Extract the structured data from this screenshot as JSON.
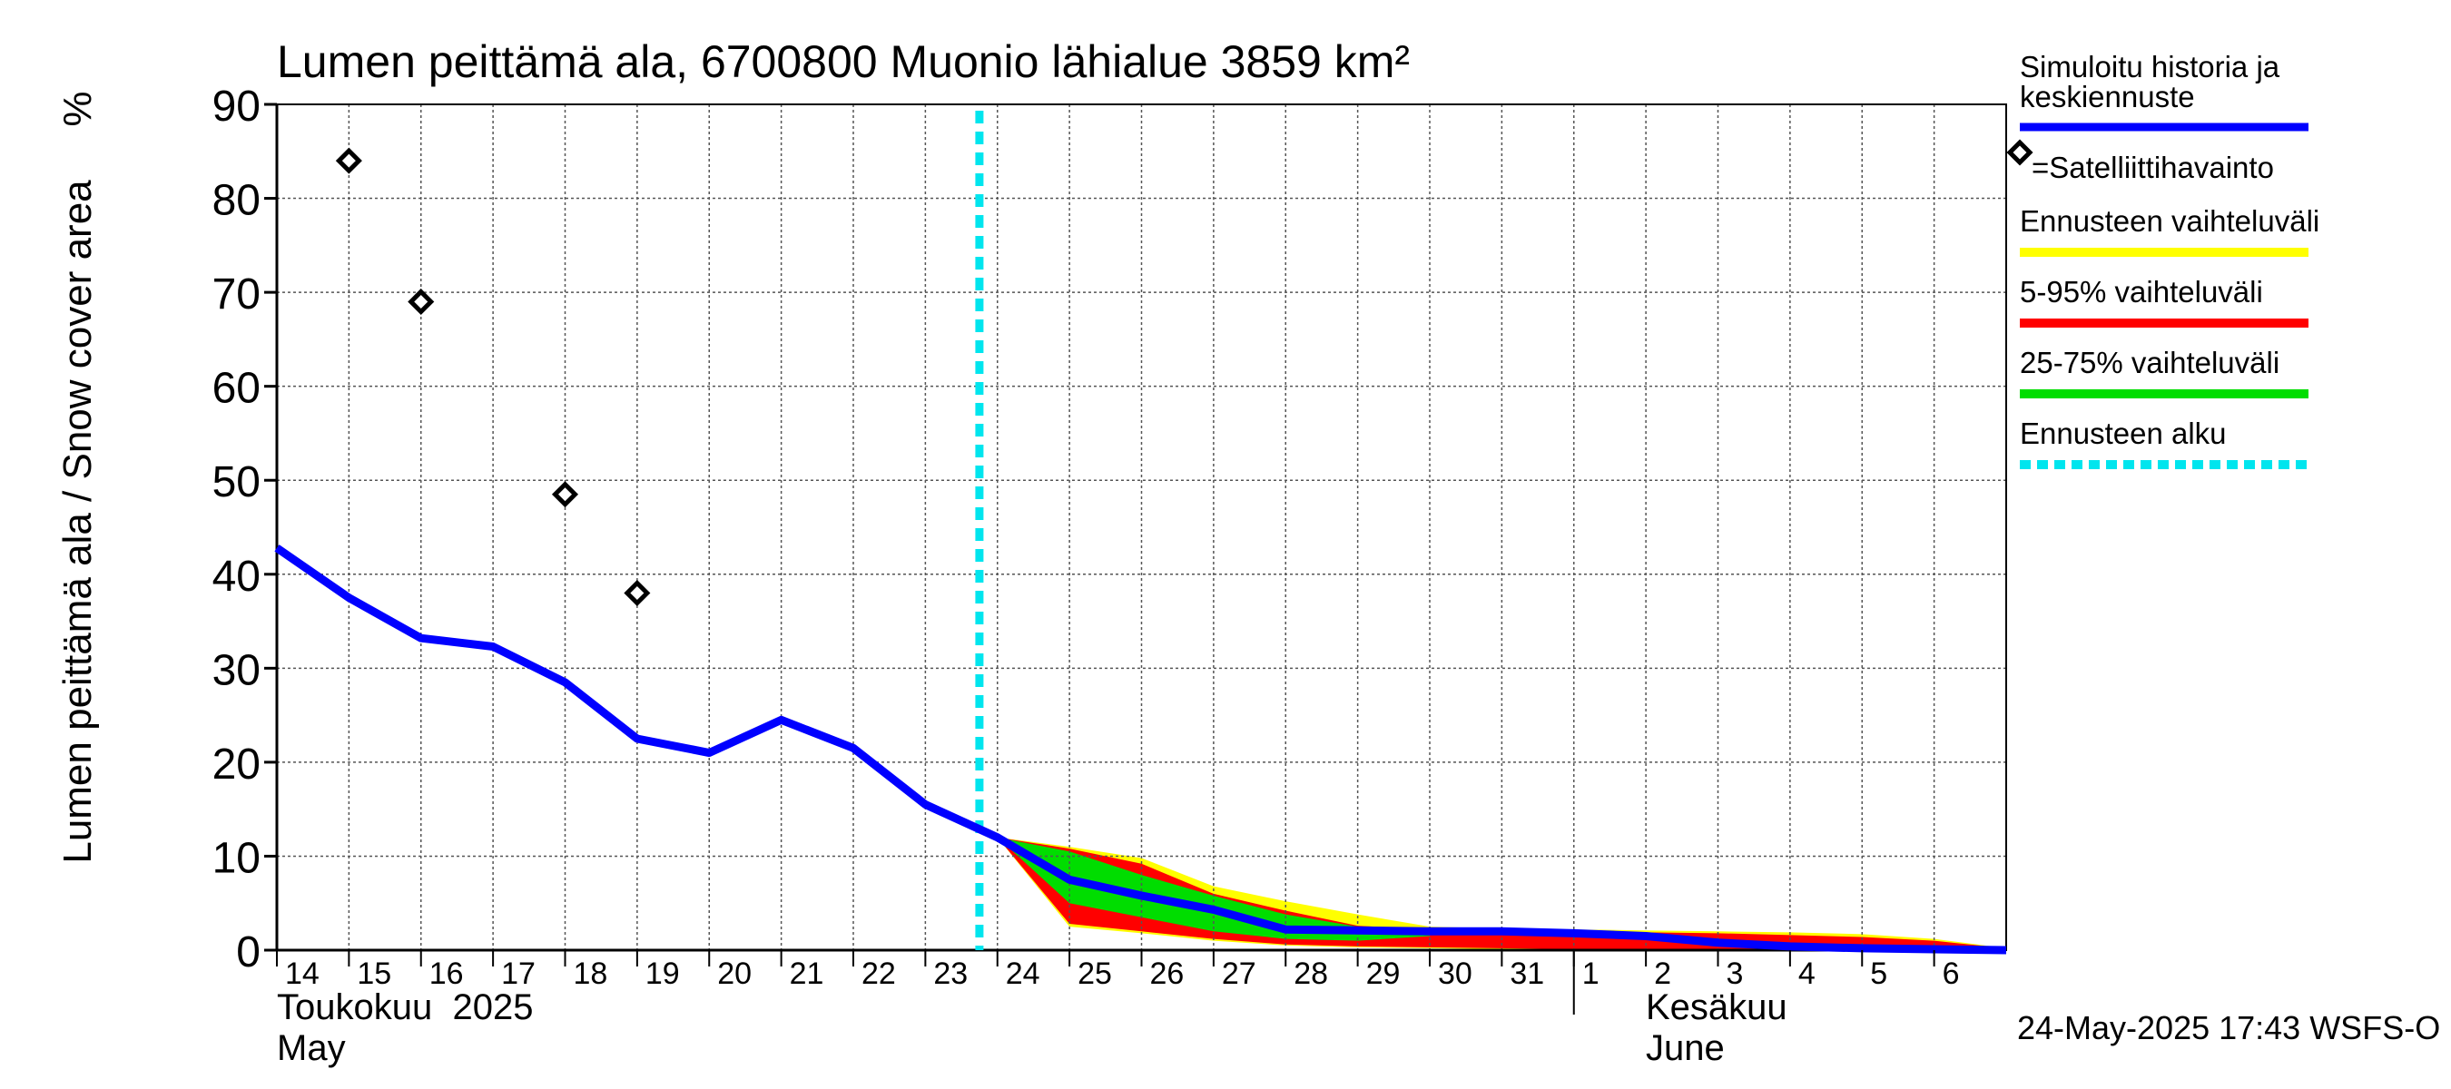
{
  "chart_data": {
    "type": "line",
    "title": "Lumen peittämä ala, 6700800 Muonio lähialue 3859 km²",
    "ylabel": "Lumen peittämä ala / Snow cover area",
    "yunit": "%",
    "ylim": [
      0,
      90
    ],
    "yticks": [
      0,
      10,
      20,
      30,
      40,
      50,
      60,
      70,
      80,
      90
    ],
    "xlim": [
      "2025-05-14",
      "2025-06-07"
    ],
    "x_tick_labels": [
      "14",
      "15",
      "16",
      "17",
      "18",
      "19",
      "20",
      "21",
      "22",
      "23",
      "24",
      "25",
      "26",
      "27",
      "28",
      "29",
      "30",
      "31",
      "1",
      "2",
      "3",
      "4",
      "5",
      "6"
    ],
    "month_labels": [
      {
        "fi": "Toukokuu  2025",
        "en": "May",
        "start": "2025-05-14"
      },
      {
        "fi": "Kesäkuu",
        "en": "June",
        "start": "2025-06-01"
      }
    ],
    "grid": true,
    "forecast_start": "2025-05-23T18:00",
    "series": [
      {
        "name": "Simuloitu historia ja keskiennuste",
        "color": "#0000ff",
        "points": [
          [
            "2025-05-14",
            42.8
          ],
          [
            "2025-05-15",
            37.5
          ],
          [
            "2025-05-16",
            33.2
          ],
          [
            "2025-05-17",
            32.3
          ],
          [
            "2025-05-18",
            28.5
          ],
          [
            "2025-05-19",
            22.5
          ],
          [
            "2025-05-20",
            21.0
          ],
          [
            "2025-05-21",
            24.5
          ],
          [
            "2025-05-22",
            21.5
          ],
          [
            "2025-05-23",
            15.5
          ],
          [
            "2025-05-24",
            12.0
          ],
          [
            "2025-05-25",
            7.5
          ],
          [
            "2025-05-26",
            5.8
          ],
          [
            "2025-05-27",
            4.3
          ],
          [
            "2025-05-28",
            2.2
          ],
          [
            "2025-05-29",
            2.1
          ],
          [
            "2025-05-30",
            2.0
          ],
          [
            "2025-05-31",
            2.0
          ],
          [
            "2025-06-01",
            1.8
          ],
          [
            "2025-06-02",
            1.5
          ],
          [
            "2025-06-03",
            0.8
          ],
          [
            "2025-06-04",
            0.4
          ],
          [
            "2025-06-05",
            0.2
          ],
          [
            "2025-06-06",
            0.1
          ],
          [
            "2025-06-07",
            0.0
          ]
        ]
      },
      {
        "name": "=Satelliittihavainto",
        "color": "#000000",
        "points": [
          [
            "2025-05-15",
            84.0
          ],
          [
            "2025-05-16",
            69.0
          ],
          [
            "2025-05-18",
            48.5
          ],
          [
            "2025-05-19",
            38.0
          ]
        ]
      }
    ],
    "bands": [
      {
        "name": "Ennusteen vaihteluväli",
        "color": "#ffff00",
        "x": [
          "2025-05-24",
          "2025-05-25",
          "2025-05-26",
          "2025-05-27",
          "2025-05-28",
          "2025-05-29",
          "2025-05-30",
          "2025-05-31",
          "2025-06-01",
          "2025-06-02",
          "2025-06-03",
          "2025-06-04",
          "2025-06-05",
          "2025-06-06",
          "2025-06-07"
        ],
        "upper": [
          12.0,
          11.0,
          9.8,
          6.8,
          5.2,
          3.8,
          2.5,
          2.3,
          2.2,
          2.1,
          2.0,
          1.9,
          1.7,
          1.2,
          0.2
        ],
        "lower": [
          12.0,
          2.5,
          1.8,
          1.0,
          0.5,
          0.3,
          0.2,
          0.1,
          0.05,
          0.0,
          0.0,
          0.0,
          0.0,
          0.0,
          0.0
        ]
      },
      {
        "name": "5-95% vaihteluväli",
        "color": "#ff0000",
        "x": [
          "2025-05-24",
          "2025-05-25",
          "2025-05-26",
          "2025-05-27",
          "2025-05-28",
          "2025-05-29",
          "2025-05-30",
          "2025-05-31",
          "2025-06-01",
          "2025-06-02",
          "2025-06-03",
          "2025-06-04",
          "2025-06-05",
          "2025-06-06",
          "2025-06-07"
        ],
        "upper": [
          12.0,
          10.8,
          9.2,
          6.0,
          4.2,
          2.6,
          2.2,
          2.1,
          2.0,
          1.9,
          1.8,
          1.6,
          1.4,
          1.0,
          0.2
        ],
        "lower": [
          12.0,
          2.8,
          2.0,
          1.2,
          0.6,
          0.4,
          0.3,
          0.2,
          0.1,
          0.05,
          0.0,
          0.0,
          0.0,
          0.0,
          0.0
        ]
      },
      {
        "name": "25-75% vaihteluväli",
        "color": "#00dd00",
        "x": [
          "2025-05-24",
          "2025-05-25",
          "2025-05-26",
          "2025-05-27",
          "2025-05-28",
          "2025-05-29",
          "2025-05-30"
        ],
        "upper": [
          12.0,
          10.5,
          8.0,
          5.8,
          3.8,
          2.5,
          2.0
        ],
        "lower": [
          12.0,
          5.0,
          3.5,
          2.0,
          1.2,
          1.0,
          1.5
        ]
      }
    ],
    "legend": {
      "placement": "right",
      "entries": [
        {
          "label": "Simuloitu historia ja keskiennuste",
          "color": "#0000ff",
          "style": "line"
        },
        {
          "label": "=Satelliittihavainto",
          "color": "#000000",
          "style": "diamond"
        },
        {
          "label": "Ennusteen vaihteluväli",
          "color": "#ffff00",
          "style": "line"
        },
        {
          "label": "5-95% vaihteluväli",
          "color": "#ff0000",
          "style": "line"
        },
        {
          "label": "25-75% vaihteluväli",
          "color": "#00dd00",
          "style": "line"
        },
        {
          "label": "Ennusteen alku",
          "color": "#00e5ee",
          "style": "dashed"
        }
      ]
    },
    "footer": "24-May-2025 17:43 WSFS-O"
  }
}
